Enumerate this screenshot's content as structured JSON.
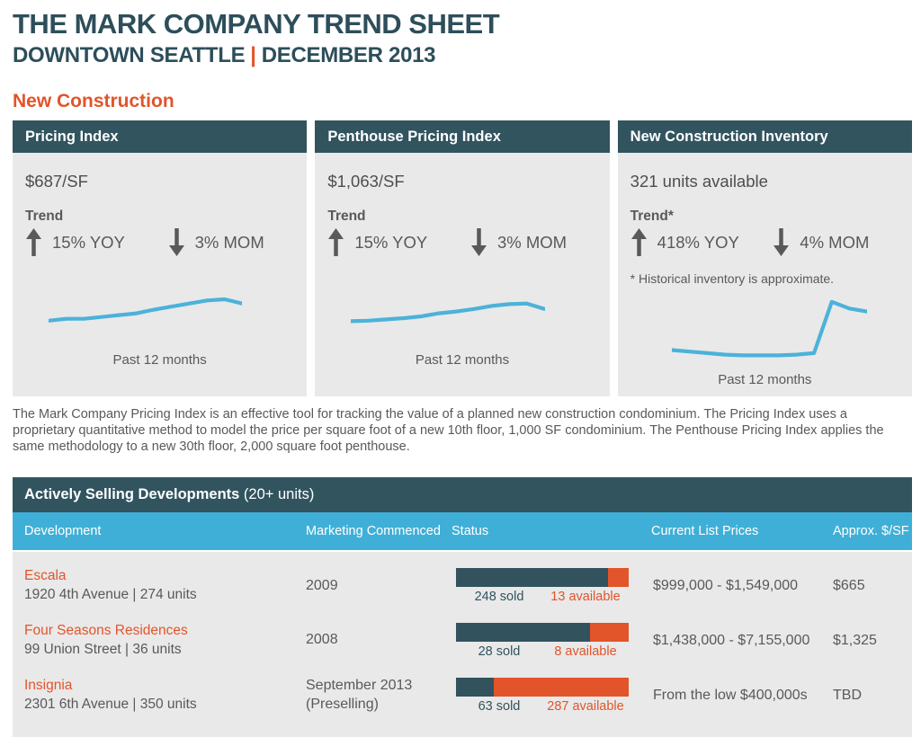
{
  "page": {
    "title": "THE MARK COMPANY TREND SHEET",
    "subtitle": {
      "location": "DOWNTOWN SEATTLE",
      "separator": "|",
      "date": "DECEMBER 2013"
    },
    "section_heading": "New Construction",
    "description": "The Mark Company Pricing Index is an effective tool for tracking the value of a planned new construction condominium. The Pricing Index uses a proprietary quantitative method to model the price per square foot of a new 10th floor, 1,000 SF condominium. The Penthouse Pricing Index applies the same methodology to a new 30th floor, 2,000 square foot penthouse."
  },
  "colors": {
    "heading_teal": "#2d4e5a",
    "panel_header_teal": "#31545f",
    "bar_teal": "#32525e",
    "orange": "#e2542a",
    "column_header_blue": "#3fafd7",
    "sparkline_blue": "#4cb2d9",
    "panel_gray": "#e9e9e9",
    "text_gray": "#58595b"
  },
  "panels": [
    {
      "title": "Pricing Index",
      "value": "$687/SF",
      "trend_label": "Trend",
      "yoy": {
        "direction": "up",
        "label": "15% YOY"
      },
      "mom": {
        "direction": "down",
        "label": "3% MOM"
      },
      "caption": "Past 12 months"
    },
    {
      "title": "Penthouse Pricing Index",
      "value": "$1,063/SF",
      "trend_label": "Trend",
      "yoy": {
        "direction": "up",
        "label": "15% YOY"
      },
      "mom": {
        "direction": "down",
        "label": "3% MOM"
      },
      "caption": "Past 12 months"
    },
    {
      "title": "New Construction Inventory",
      "value": "321 units available",
      "trend_label": "Trend*",
      "yoy": {
        "direction": "up",
        "label": "418% YOY"
      },
      "mom": {
        "direction": "down",
        "label": "4% MOM"
      },
      "footnote": "* Historical inventory is approximate.",
      "caption": "Past 12 months"
    }
  ],
  "chart_data": [
    {
      "type": "line",
      "title": "Pricing Index — Past 12 months",
      "x": [
        1,
        2,
        3,
        4,
        5,
        6,
        7,
        8,
        9,
        10,
        11,
        12
      ],
      "values": [
        43,
        46,
        46,
        49,
        52,
        55,
        61,
        66,
        71,
        76,
        78,
        71
      ],
      "xlabel": "Past 12 months",
      "ylabel": "relative index level (unlabeled sparkline, estimated 0-100)",
      "ylim": [
        0,
        100
      ],
      "grid": false,
      "legend": false
    },
    {
      "type": "line",
      "title": "Penthouse Pricing Index — Past 12 months",
      "x": [
        1,
        2,
        3,
        4,
        5,
        6,
        7,
        8,
        9,
        10,
        11,
        12
      ],
      "values": [
        42,
        43,
        45,
        47,
        50,
        55,
        58,
        62,
        67,
        70,
        71,
        62
      ],
      "xlabel": "Past 12 months",
      "ylabel": "relative index level (unlabeled sparkline, estimated 0-100)",
      "ylim": [
        0,
        100
      ],
      "grid": false,
      "legend": false
    },
    {
      "type": "line",
      "title": "New Construction Inventory — Past 12 months",
      "x": [
        1,
        2,
        3,
        4,
        5,
        6,
        7,
        8,
        9,
        10,
        11,
        12
      ],
      "values": [
        22,
        20,
        18,
        16,
        15,
        15,
        15,
        16,
        18,
        86,
        77,
        73
      ],
      "xlabel": "Past 12 months",
      "ylabel": "relative inventory level (unlabeled sparkline, estimated 0-100)",
      "ylim": [
        0,
        100
      ],
      "grid": false,
      "legend": false
    }
  ],
  "table": {
    "heading": "Actively Selling Developments",
    "heading_suffix": " (20+ units)",
    "columns": [
      "Development",
      "Marketing Commenced",
      "Status",
      "Current List Prices",
      "Approx. $/SF"
    ],
    "rows": [
      {
        "name": "Escala",
        "address": "1920 4th Avenue | 274 units",
        "commenced": "2009",
        "sold": 248,
        "available": 13,
        "sold_label": "248 sold",
        "available_label": "13 available",
        "prices": "$999,000 - $1,549,000",
        "psf": "$665"
      },
      {
        "name": "Four Seasons Residences",
        "address": "99 Union Street | 36 units",
        "commenced": "2008",
        "sold": 28,
        "available": 8,
        "sold_label": "28 sold",
        "available_label": "8 available",
        "prices": "$1,438,000 - $7,155,000",
        "psf": "$1,325"
      },
      {
        "name": "Insignia",
        "address": "2301 6th Avenue | 350 units",
        "commenced": "September 2013 (Preselling)",
        "sold": 63,
        "available": 287,
        "sold_label": "63 sold",
        "available_label": "287 available",
        "prices": "From the low $400,000s",
        "psf": "TBD"
      }
    ]
  }
}
